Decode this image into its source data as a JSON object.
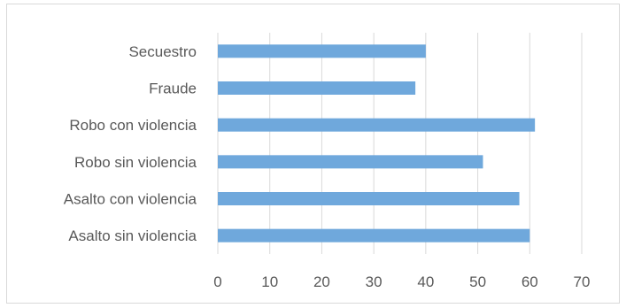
{
  "chart_data": {
    "type": "bar",
    "orientation": "horizontal",
    "categories": [
      "Secuestro",
      "Fraude",
      "Robo con violencia",
      "Robo sin violencia",
      "Asalto con violencia",
      "Asalto sin violencia"
    ],
    "values": [
      40,
      38,
      61,
      51,
      58,
      60
    ],
    "xlim": [
      0,
      70
    ],
    "xticks": [
      "0",
      "10",
      "20",
      "30",
      "40",
      "50",
      "60",
      "70"
    ],
    "title": "",
    "xlabel": "",
    "ylabel": "",
    "grid": "vertical",
    "legend": "none",
    "bar_color": "#6FA8DC",
    "grid_color": "#D9D9D9",
    "text_color": "#595959"
  }
}
